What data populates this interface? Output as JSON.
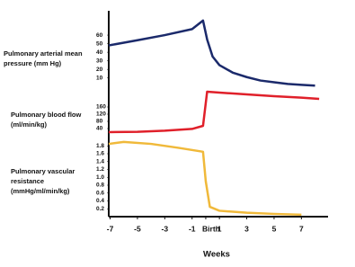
{
  "chart_data": {
    "type": "line",
    "xlabel": "Weeks",
    "xlim": [
      -7.1,
      8.95
    ],
    "xticks": [
      -7,
      -5,
      -3,
      -1,
      {
        "value": 0,
        "label": "Birth"
      },
      1,
      3,
      5,
      7
    ],
    "panels": [
      {
        "label": [
          "Pulmonary arterial mean",
          "pressure (mm Hg)"
        ],
        "ylim": [
          -5,
          80
        ],
        "yticks": [
          10,
          20,
          30,
          40,
          50,
          60
        ],
        "color": "#1b2a6b",
        "x": [
          -7.1,
          -5,
          -3,
          -1,
          -0.2,
          0.1,
          0.5,
          1,
          2,
          3,
          4,
          5,
          6,
          7,
          8
        ],
        "values": [
          48,
          54,
          60,
          67,
          77,
          55,
          35,
          25,
          16,
          11,
          7,
          5,
          3,
          2,
          1
        ]
      },
      {
        "label": [
          "Pulmonary blood flow",
          "(ml/min/kg)"
        ],
        "ylim": [
          0,
          260
        ],
        "yticks": [
          40,
          80,
          120,
          160
        ],
        "color": "#e0202a",
        "x": [
          -7.1,
          -5,
          -3,
          -1,
          -0.2,
          0.1,
          1,
          3,
          5,
          7,
          8.3
        ],
        "values": [
          20,
          22,
          28,
          38,
          55,
          245,
          240,
          230,
          220,
          212,
          205
        ]
      },
      {
        "label": [
          "Pulmonary vascular",
          "resistance",
          "(mmHg/ml/min/kg)"
        ],
        "ylim": [
          0,
          2
        ],
        "yticks": [
          0.2,
          0.4,
          0.6,
          0.8,
          {
            "value": 1,
            "label": "1.0"
          },
          1.2,
          1.4,
          1.6,
          1.8
        ],
        "color": "#f0b93a",
        "x": [
          -7.1,
          -6,
          -4,
          -2,
          -0.2,
          0,
          0.3,
          1,
          3,
          5,
          7
        ],
        "values": [
          1.85,
          1.9,
          1.85,
          1.75,
          1.65,
          0.9,
          0.25,
          0.15,
          0.1,
          0.07,
          0.05
        ]
      }
    ]
  }
}
